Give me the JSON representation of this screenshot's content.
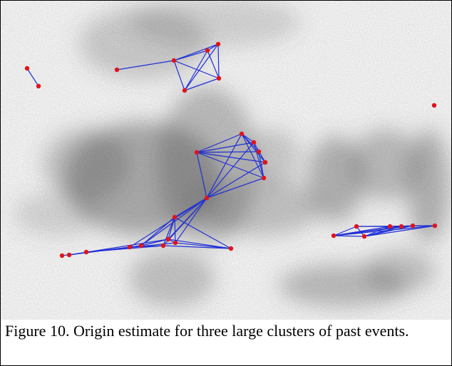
{
  "figure": {
    "caption": "Figure 10. Origin estimate for three large clusters of past events."
  }
}
